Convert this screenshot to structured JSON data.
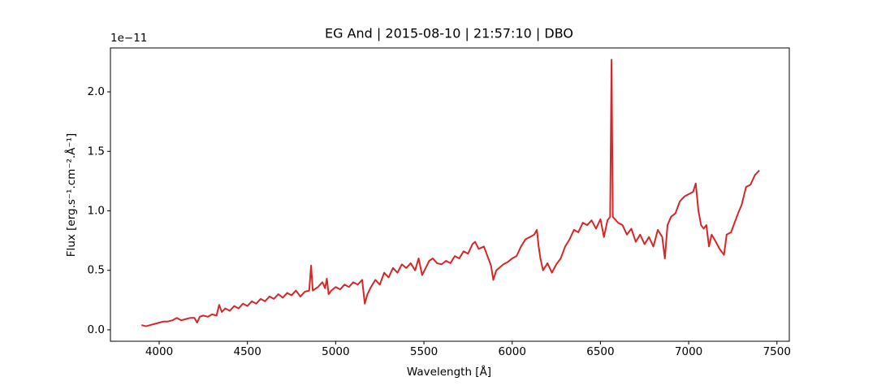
{
  "chart_data": {
    "type": "line",
    "title": "EG And | 2015-08-10 | 21:57:10 | DBO",
    "x_label": "Wavelength [Å]",
    "y_label": "Flux [erg.s⁻¹.cm⁻².Å⁻¹]",
    "y_offset_label": "1e−11",
    "color": "#d62728",
    "xlim": [
      3724,
      7570
    ],
    "ylim": [
      -0.096,
      2.369
    ],
    "xticks": [
      4000,
      4500,
      5000,
      5500,
      6000,
      6500,
      7000,
      7500
    ],
    "yticks": [
      {
        "value": 0,
        "label": "0.0"
      },
      0.5,
      {
        "value": 1,
        "label": "1.0"
      },
      1.5,
      {
        "value": 2,
        "label": "2.0"
      }
    ],
    "x": [
      3900,
      3925,
      3950,
      3975,
      4000,
      4025,
      4050,
      4075,
      4100,
      4125,
      4150,
      4175,
      4200,
      4215,
      4230,
      4250,
      4275,
      4300,
      4325,
      4340,
      4355,
      4375,
      4400,
      4425,
      4450,
      4475,
      4500,
      4525,
      4550,
      4575,
      4600,
      4625,
      4650,
      4675,
      4700,
      4725,
      4750,
      4775,
      4800,
      4825,
      4850,
      4861,
      4870,
      4900,
      4925,
      4940,
      4950,
      4960,
      4975,
      5000,
      5025,
      5050,
      5075,
      5100,
      5125,
      5150,
      5165,
      5180,
      5200,
      5225,
      5250,
      5275,
      5300,
      5325,
      5350,
      5375,
      5400,
      5425,
      5450,
      5470,
      5490,
      5510,
      5530,
      5550,
      5575,
      5600,
      5625,
      5650,
      5675,
      5700,
      5725,
      5750,
      5775,
      5790,
      5810,
      5840,
      5860,
      5880,
      5893,
      5910,
      5950,
      5975,
      6000,
      6025,
      6050,
      6075,
      6100,
      6125,
      6140,
      6150,
      6160,
      6175,
      6200,
      6225,
      6250,
      6275,
      6300,
      6325,
      6350,
      6375,
      6400,
      6425,
      6450,
      6475,
      6500,
      6520,
      6540,
      6555,
      6563,
      6570,
      6600,
      6625,
      6650,
      6675,
      6700,
      6725,
      6750,
      6775,
      6800,
      6825,
      6850,
      6865,
      6880,
      6900,
      6925,
      6950,
      6975,
      7000,
      7025,
      7040,
      7055,
      7070,
      7085,
      7100,
      7115,
      7130,
      7150,
      7175,
      7200,
      7215,
      7240,
      7260,
      7280,
      7300,
      7325,
      7350,
      7375,
      7400
    ],
    "values": [
      0.04,
      0.03,
      0.04,
      0.05,
      0.06,
      0.07,
      0.07,
      0.08,
      0.1,
      0.08,
      0.09,
      0.1,
      0.1,
      0.06,
      0.11,
      0.12,
      0.11,
      0.13,
      0.12,
      0.21,
      0.15,
      0.18,
      0.16,
      0.2,
      0.18,
      0.22,
      0.2,
      0.24,
      0.22,
      0.26,
      0.24,
      0.28,
      0.26,
      0.3,
      0.27,
      0.31,
      0.29,
      0.33,
      0.28,
      0.32,
      0.33,
      0.54,
      0.33,
      0.36,
      0.4,
      0.35,
      0.43,
      0.3,
      0.33,
      0.36,
      0.34,
      0.38,
      0.36,
      0.4,
      0.38,
      0.42,
      0.22,
      0.3,
      0.36,
      0.42,
      0.38,
      0.48,
      0.44,
      0.52,
      0.48,
      0.55,
      0.52,
      0.56,
      0.5,
      0.6,
      0.46,
      0.52,
      0.58,
      0.6,
      0.56,
      0.55,
      0.58,
      0.56,
      0.62,
      0.6,
      0.66,
      0.64,
      0.72,
      0.74,
      0.68,
      0.7,
      0.62,
      0.54,
      0.42,
      0.5,
      0.55,
      0.57,
      0.6,
      0.62,
      0.7,
      0.76,
      0.78,
      0.8,
      0.84,
      0.7,
      0.6,
      0.5,
      0.56,
      0.48,
      0.55,
      0.6,
      0.7,
      0.76,
      0.84,
      0.82,
      0.9,
      0.88,
      0.92,
      0.85,
      0.93,
      0.78,
      0.92,
      0.95,
      2.27,
      0.95,
      0.9,
      0.88,
      0.8,
      0.85,
      0.74,
      0.8,
      0.72,
      0.78,
      0.7,
      0.84,
      0.78,
      0.6,
      0.88,
      0.95,
      0.98,
      1.08,
      1.12,
      1.14,
      1.16,
      1.23,
      1.0,
      0.88,
      0.85,
      0.88,
      0.7,
      0.8,
      0.75,
      0.68,
      0.63,
      0.8,
      0.82,
      0.9,
      0.98,
      1.05,
      1.2,
      1.22,
      1.3,
      1.34
    ]
  }
}
